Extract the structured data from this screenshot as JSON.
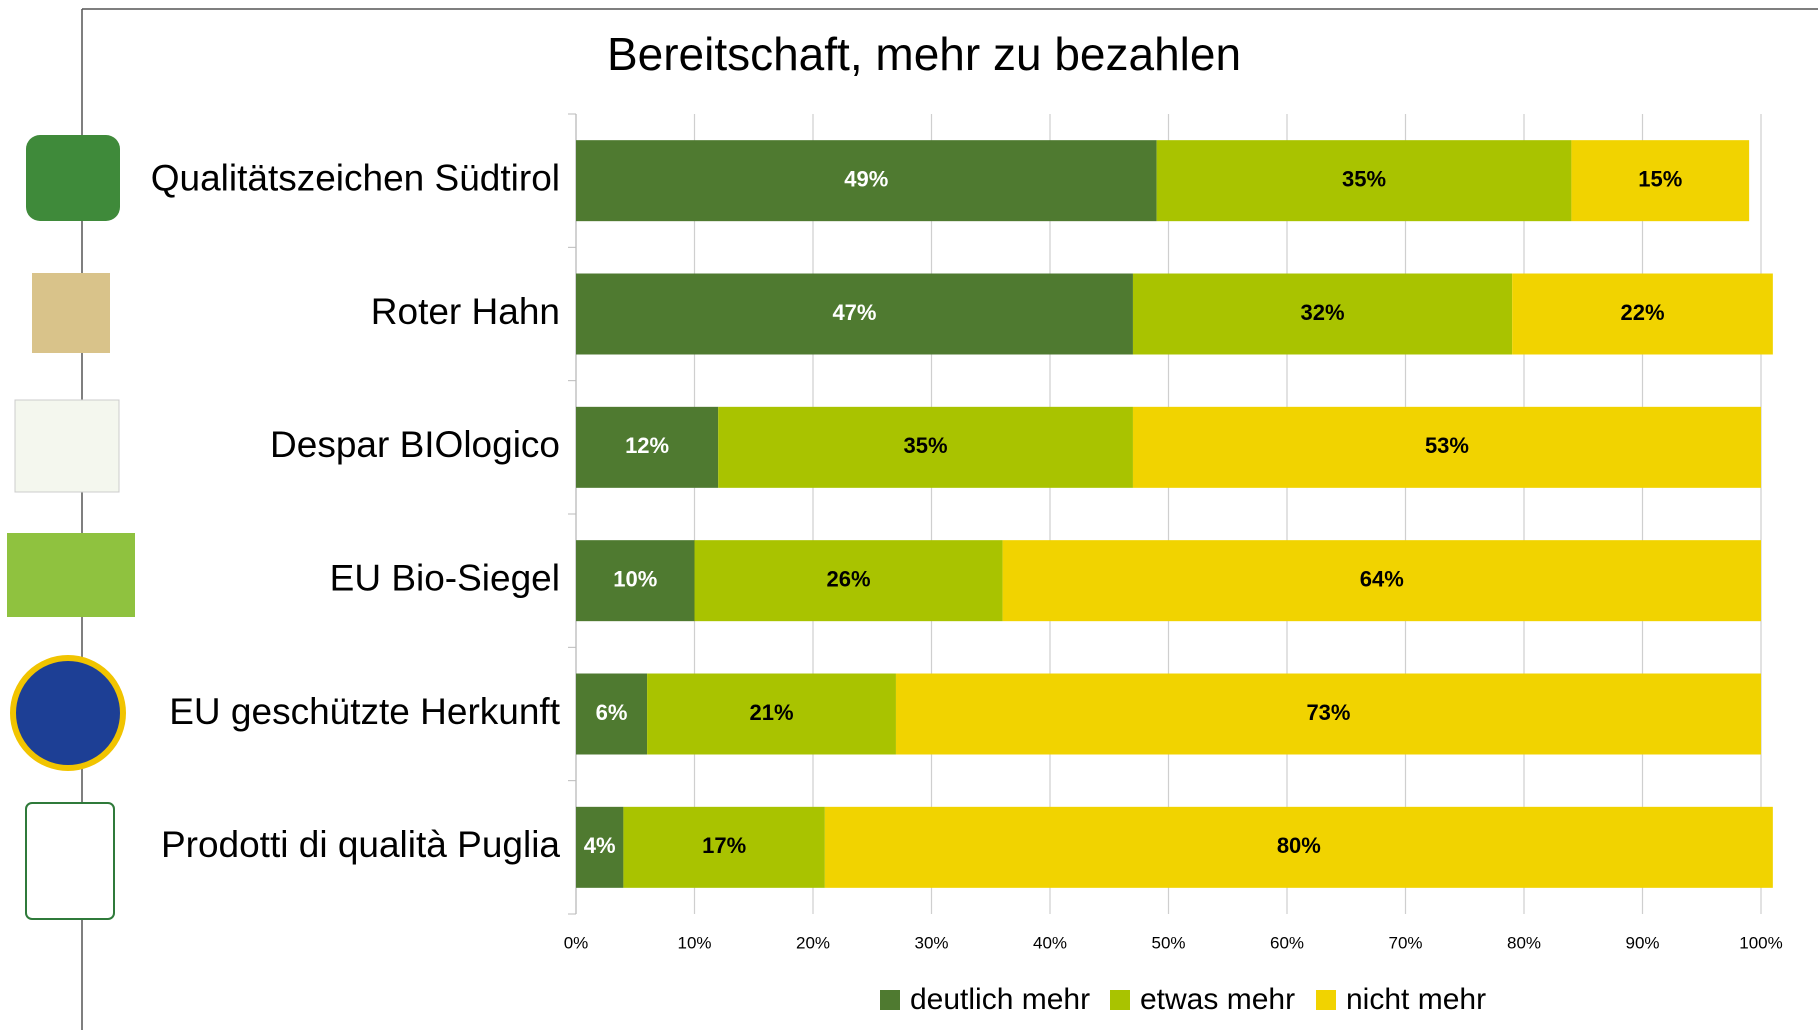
{
  "chart_data": {
    "type": "stacked-bar-horizontal",
    "title": "Bereitschaft, mehr zu bezahlen",
    "categories": [
      "Qualitätszeichen Südtirol",
      "Roter Hahn",
      "Despar BIOlogico",
      "EU Bio-Siegel",
      "EU geschützte Herkunft",
      "Prodotti di qualità Puglia"
    ],
    "series": [
      {
        "name": "deutlich mehr",
        "color": "#4f7a30",
        "label_color": "#ffffff",
        "values": [
          49,
          47,
          12,
          10,
          6,
          4
        ],
        "value_labels": [
          "49%",
          "47%",
          "12%",
          "10%",
          "6%",
          "4%"
        ]
      },
      {
        "name": "etwas mehr",
        "color": "#a9c300",
        "label_color": "#000000",
        "values": [
          35,
          32,
          35,
          26,
          21,
          17
        ],
        "value_labels": [
          "35%",
          "32%",
          "35%",
          "26%",
          "21%",
          "17%"
        ]
      },
      {
        "name": "nicht mehr",
        "color": "#f1d300",
        "label_color": "#000000",
        "values": [
          15,
          22,
          53,
          64,
          73,
          80
        ],
        "value_labels": [
          "15%",
          "22%",
          "53%",
          "64%",
          "73%",
          "80%"
        ]
      }
    ],
    "xlim": [
      0,
      100
    ],
    "xticks": [
      {
        "value": 0,
        "label": "0%"
      },
      {
        "value": 10,
        "label": "10%"
      },
      {
        "value": 20,
        "label": "20%"
      },
      {
        "value": 30,
        "label": "30%"
      },
      {
        "value": 40,
        "label": "40%"
      },
      {
        "value": 50,
        "label": "50%"
      },
      {
        "value": 60,
        "label": "60%"
      },
      {
        "value": 70,
        "label": "70%"
      },
      {
        "value": 80,
        "label": "80%"
      },
      {
        "value": 90,
        "label": "90%"
      },
      {
        "value": 100,
        "label": "100%"
      }
    ],
    "grid": true,
    "legend": "bottom"
  }
}
